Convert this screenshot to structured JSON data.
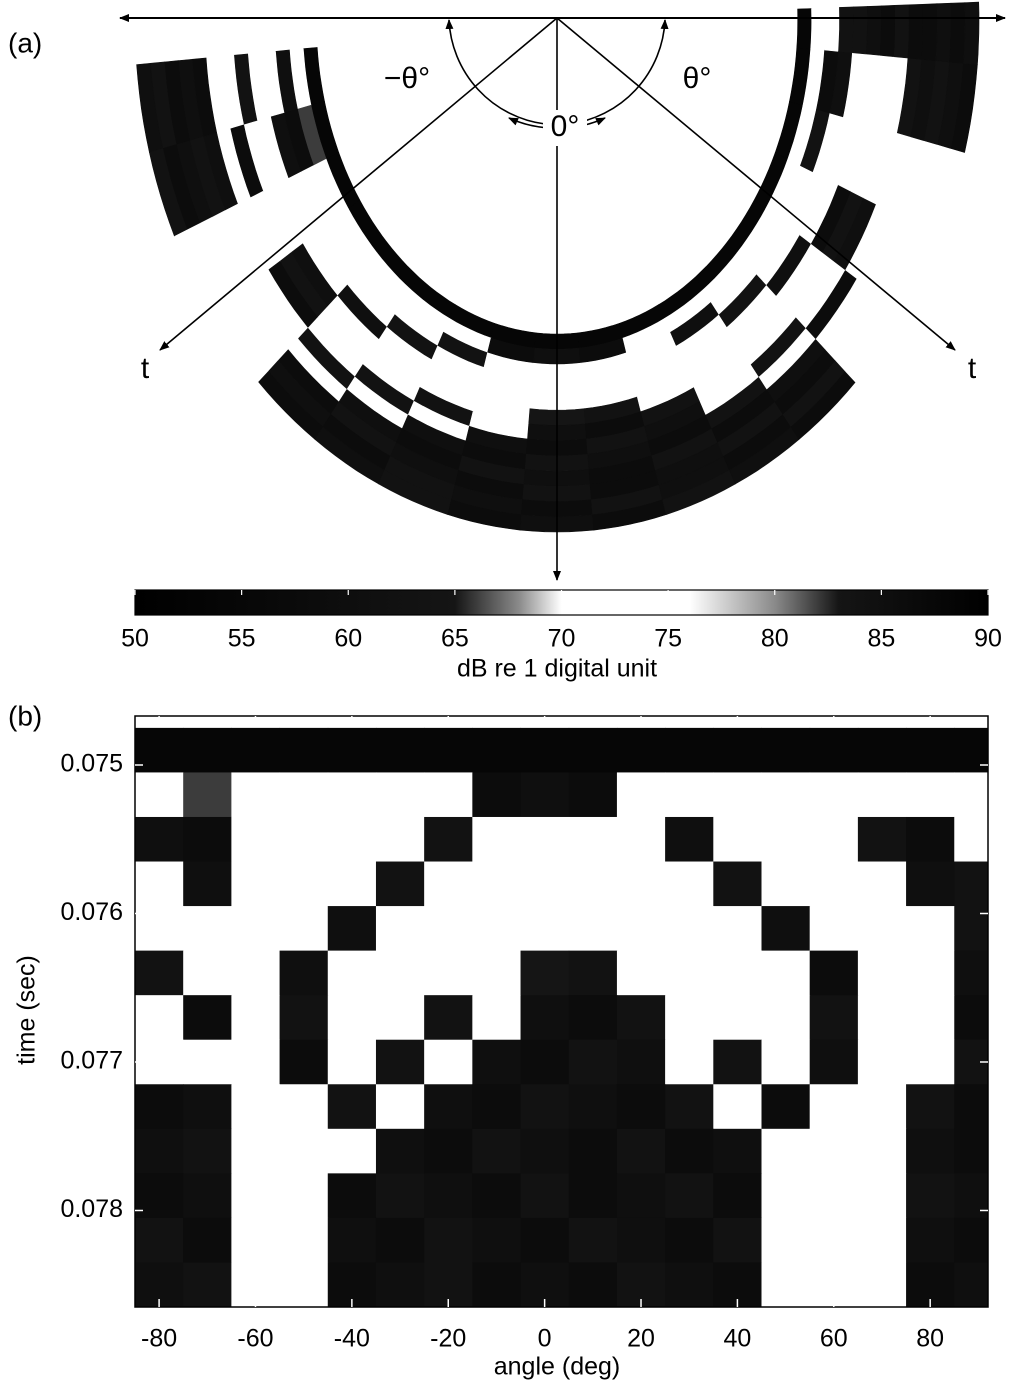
{
  "chart_data": {
    "type": "heatmap",
    "panels": [
      "(a)",
      "(b)"
    ],
    "polar_labels": [
      "−θ°",
      "θ°",
      "0°",
      "t",
      "t"
    ],
    "xlabel": "angle (deg)",
    "ylabel": "time (sec)",
    "x": [
      -80,
      -70,
      -60,
      -50,
      -40,
      -30,
      -20,
      -10,
      0,
      10,
      20,
      30,
      40,
      50,
      60,
      70,
      80,
      90
    ],
    "y": [
      0.0749,
      0.0752,
      0.0755,
      0.0758,
      0.0761,
      0.0764,
      0.0767,
      0.077,
      0.0773,
      0.0776,
      0.0779,
      0.0782,
      0.0785
    ],
    "z": [
      [
        88,
        88,
        88,
        88,
        88,
        88,
        88,
        88,
        88,
        88,
        88,
        88,
        88,
        88,
        88,
        88,
        88,
        88
      ],
      [
        71,
        82,
        71,
        72,
        74,
        70,
        73,
        86,
        85,
        86,
        72,
        73,
        71,
        70,
        74,
        72,
        71,
        73
      ],
      [
        85,
        86,
        72,
        71,
        73,
        72,
        84,
        71,
        72,
        70,
        71,
        85,
        72,
        73,
        71,
        84,
        86,
        72
      ],
      [
        72,
        85,
        71,
        70,
        74,
        84,
        72,
        71,
        73,
        72,
        70,
        72,
        84,
        71,
        72,
        73,
        85,
        84
      ],
      [
        71,
        73,
        72,
        70,
        85,
        71,
        72,
        70,
        73,
        71,
        72,
        70,
        71,
        85,
        72,
        71,
        73,
        84
      ],
      [
        84,
        72,
        71,
        85,
        72,
        73,
        71,
        72,
        83,
        84,
        72,
        73,
        71,
        72,
        86,
        73,
        72,
        85
      ],
      [
        72,
        86,
        73,
        84,
        71,
        70,
        84,
        72,
        85,
        86,
        84,
        72,
        71,
        73,
        84,
        71,
        72,
        86
      ],
      [
        73,
        71,
        72,
        86,
        72,
        84,
        71,
        85,
        86,
        84,
        85,
        72,
        84,
        73,
        85,
        72,
        71,
        84
      ],
      [
        86,
        85,
        72,
        71,
        84,
        73,
        85,
        86,
        84,
        85,
        86,
        84,
        72,
        86,
        71,
        72,
        84,
        86
      ],
      [
        85,
        84,
        71,
        72,
        73,
        85,
        86,
        84,
        85,
        86,
        84,
        86,
        85,
        72,
        71,
        73,
        85,
        86
      ],
      [
        86,
        85,
        72,
        71,
        86,
        84,
        85,
        86,
        84,
        86,
        85,
        84,
        86,
        71,
        72,
        70,
        84,
        85
      ],
      [
        84,
        86,
        73,
        72,
        85,
        86,
        84,
        85,
        86,
        84,
        85,
        86,
        84,
        73,
        71,
        72,
        85,
        86
      ],
      [
        85,
        84,
        71,
        73,
        86,
        85,
        84,
        86,
        85,
        86,
        84,
        85,
        86,
        72,
        70,
        71,
        86,
        85
      ]
    ],
    "xlim": [
      -85,
      92
    ],
    "ylim": [
      0.07467,
      0.07865
    ],
    "xticks": [
      -80,
      -60,
      -40,
      -20,
      0,
      20,
      40,
      60,
      80
    ],
    "yticks": [
      0.075,
      0.076,
      0.077,
      0.078
    ],
    "colormap": [
      {
        "value": 50,
        "color": "#000000"
      },
      {
        "value": 65,
        "color": "#151515"
      },
      {
        "value": 68,
        "color": "#8a8a8a"
      },
      {
        "value": 70,
        "color": "#ffffff"
      },
      {
        "value": 76,
        "color": "#ffffff"
      },
      {
        "value": 80,
        "color": "#8a8a8a"
      },
      {
        "value": 83,
        "color": "#151515"
      },
      {
        "value": 90,
        "color": "#000000"
      }
    ],
    "colorbar": {
      "label": "dB re 1 digital unit",
      "lim": [
        50,
        90
      ],
      "ticks": [
        50,
        55,
        60,
        65,
        70,
        75,
        80,
        85,
        90
      ]
    }
  }
}
